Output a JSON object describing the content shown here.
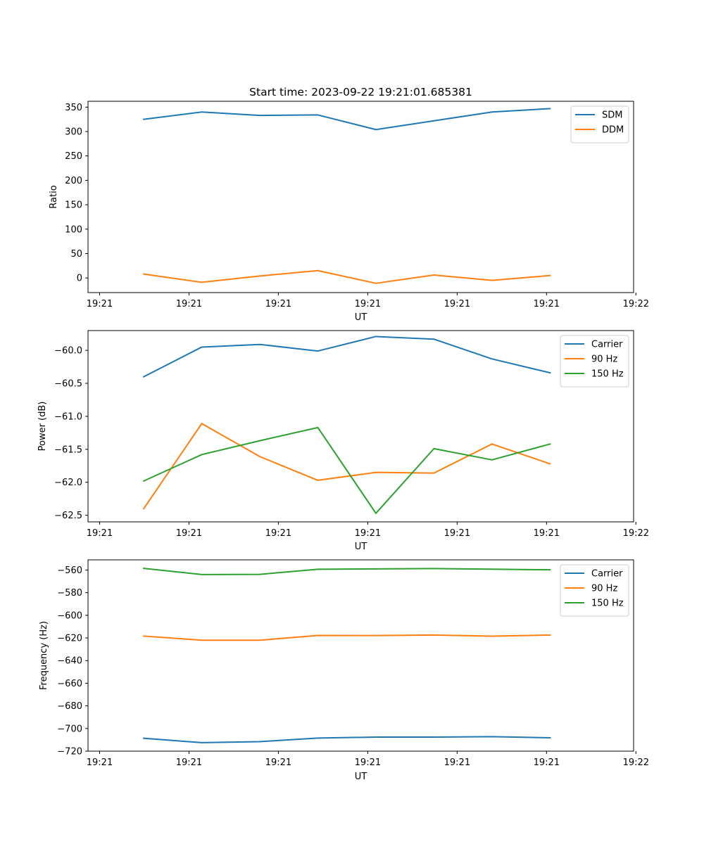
{
  "chart_data": [
    {
      "type": "line",
      "title": "Start time: 2023-09-22 19:21:01.685381",
      "xlabel": "UT",
      "ylabel": "Ratio",
      "xlim": [
        -0.1,
        4.6
      ],
      "x_ticks": [
        0,
        0.77,
        1.54,
        2.31,
        3.08,
        3.85,
        4.62
      ],
      "x_tick_labels": [
        "19:21",
        "19:21",
        "19:21",
        "19:21",
        "19:21",
        "19:21",
        "19:22"
      ],
      "ylim": [
        -30,
        362
      ],
      "y_ticks": [
        0,
        50,
        100,
        150,
        200,
        250,
        300,
        350
      ],
      "y_tick_labels": [
        "0",
        "50",
        "100",
        "150",
        "200",
        "250",
        "300",
        "350"
      ],
      "legend_position": "upper right",
      "x": [
        0.38,
        0.88,
        1.38,
        1.88,
        2.38,
        2.88,
        3.38,
        3.88
      ],
      "series": [
        {
          "name": "SDM",
          "color": "#1f77b4",
          "values": [
            325,
            340,
            333,
            334,
            304,
            322,
            340,
            347
          ]
        },
        {
          "name": "DDM",
          "color": "#ff7f0e",
          "values": [
            8,
            -9,
            4,
            15,
            -11,
            6,
            -5,
            5
          ]
        }
      ]
    },
    {
      "type": "line",
      "title": "",
      "xlabel": "UT",
      "ylabel": "Power (dB)",
      "xlim": [
        -0.1,
        4.6
      ],
      "x_ticks": [
        0,
        0.77,
        1.54,
        2.31,
        3.08,
        3.85,
        4.62
      ],
      "x_tick_labels": [
        "19:21",
        "19:21",
        "19:21",
        "19:21",
        "19:21",
        "19:21",
        "19:22"
      ],
      "ylim": [
        -62.6,
        -59.7
      ],
      "y_ticks": [
        -62.5,
        -62.0,
        -61.5,
        -61.0,
        -60.5,
        -60.0
      ],
      "y_tick_labels": [
        "−62.5",
        "−62.0",
        "−61.5",
        "−61.0",
        "−60.5",
        "−60.0"
      ],
      "legend_position": "upper right",
      "x": [
        0.38,
        0.88,
        1.38,
        1.88,
        2.38,
        2.88,
        3.38,
        3.88
      ],
      "series": [
        {
          "name": "Carrier",
          "color": "#1f77b4",
          "values": [
            -60.4,
            -59.95,
            -59.91,
            -60.01,
            -59.79,
            -59.83,
            -60.13,
            -60.34
          ]
        },
        {
          "name": "90 Hz",
          "color": "#ff7f0e",
          "values": [
            -62.4,
            -61.11,
            -61.61,
            -61.97,
            -61.85,
            -61.86,
            -61.42,
            -61.72
          ]
        },
        {
          "name": "150 Hz",
          "color": "#2ca02c",
          "values": [
            -61.98,
            -61.58,
            -61.37,
            -61.17,
            -62.47,
            -61.49,
            -61.66,
            -61.42
          ]
        }
      ]
    },
    {
      "type": "line",
      "title": "",
      "xlabel": "UT",
      "ylabel": "Frequency (Hz)",
      "xlim": [
        -0.1,
        4.6
      ],
      "x_ticks": [
        0,
        0.77,
        1.54,
        2.31,
        3.08,
        3.85,
        4.62
      ],
      "x_tick_labels": [
        "19:21",
        "19:21",
        "19:21",
        "19:21",
        "19:21",
        "19:21",
        "19:22"
      ],
      "ylim": [
        -720,
        -551
      ],
      "y_ticks": [
        -720,
        -700,
        -680,
        -660,
        -640,
        -620,
        -600,
        -580,
        -560
      ],
      "y_tick_labels": [
        "−720",
        "−700",
        "−680",
        "−660",
        "−640",
        "−620",
        "−600",
        "−580",
        "−560"
      ],
      "legend_position": "upper right",
      "x": [
        0.38,
        0.88,
        1.38,
        1.88,
        2.38,
        2.88,
        3.38,
        3.88
      ],
      "series": [
        {
          "name": "Carrier",
          "color": "#1f77b4",
          "values": [
            -708.6,
            -712.5,
            -711.6,
            -708.4,
            -707.6,
            -707.6,
            -707.2,
            -708.2
          ]
        },
        {
          "name": "90 Hz",
          "color": "#ff7f0e",
          "values": [
            -618.3,
            -622.0,
            -622.0,
            -617.8,
            -617.9,
            -617.4,
            -618.4,
            -617.4
          ]
        },
        {
          "name": "150 Hz",
          "color": "#2ca02c",
          "values": [
            -558.5,
            -564.0,
            -563.8,
            -559.3,
            -559.0,
            -558.7,
            -559.2,
            -559.8
          ]
        }
      ]
    }
  ]
}
